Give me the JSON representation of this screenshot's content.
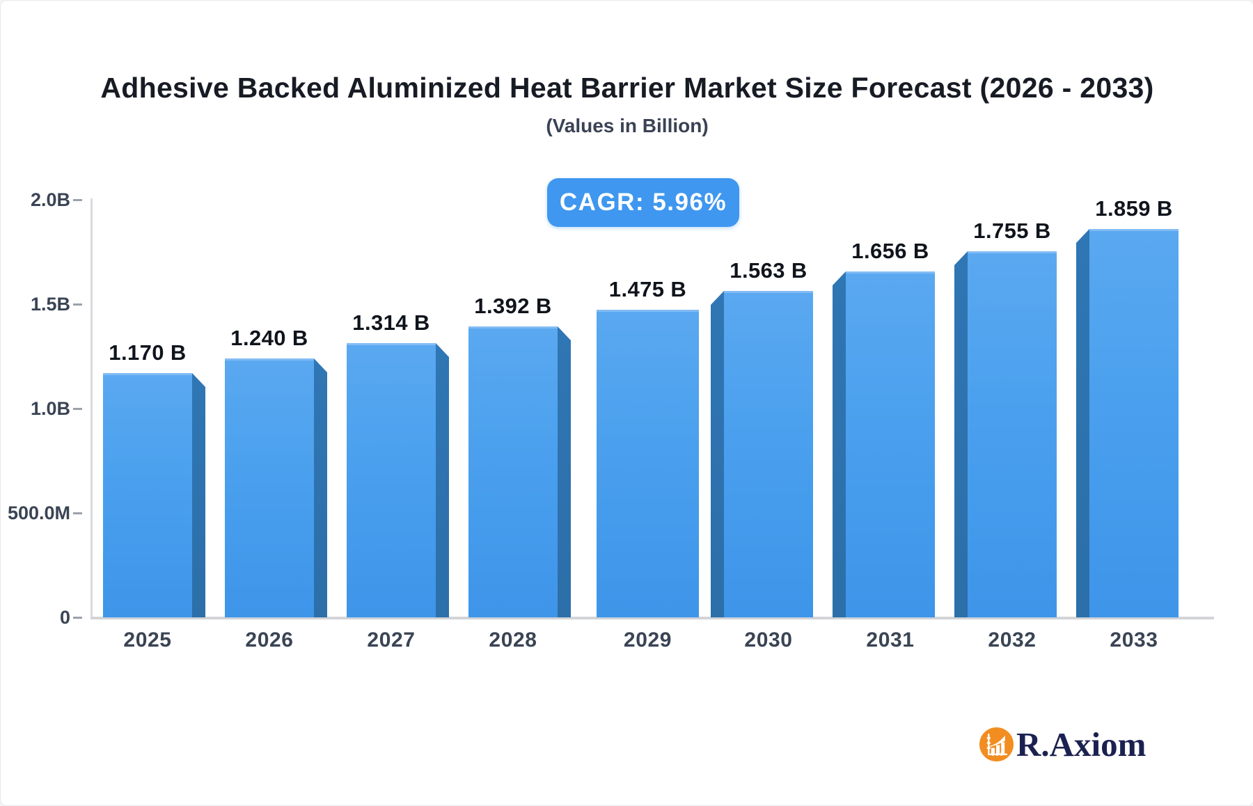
{
  "header": {
    "title": "Adhesive Backed Aluminized Heat Barrier Market Size Forecast (2026 - 2033)",
    "subtitle": "(Values in Billion)"
  },
  "cagr_badge": {
    "label": "CAGR: 5.96%",
    "bg_color": "#3f97ef",
    "text_color": "#ffffff"
  },
  "brand": {
    "name": "R.Axiom",
    "icon": "bar-chart-growth-icon",
    "icon_bg_color": "#f28d21",
    "text_color": "#1b2150"
  },
  "chart_data": {
    "type": "bar",
    "title": "Adhesive Backed Aluminized Heat Barrier Market Size Forecast (2026 - 2033)",
    "subtitle": "(Values in Billion)",
    "categories": [
      "2025",
      "2026",
      "2027",
      "2028",
      "2029",
      "2030",
      "2031",
      "2032",
      "2033"
    ],
    "values": [
      1.17,
      1.24,
      1.314,
      1.392,
      1.475,
      1.563,
      1.656,
      1.755,
      1.859
    ],
    "value_labels": [
      "1.170 B",
      "1.240 B",
      "1.314 B",
      "1.392 B",
      "1.475 B",
      "1.563 B",
      "1.656 B",
      "1.755 B",
      "1.859 B"
    ],
    "xlabel": "",
    "ylabel": "",
    "ylim": [
      0,
      2.0
    ],
    "y_ticks": [
      {
        "value": 0.0,
        "label": "0"
      },
      {
        "value": 0.5,
        "label": "500.0M"
      },
      {
        "value": 1.0,
        "label": "1.0B"
      },
      {
        "value": 1.5,
        "label": "1.5B"
      },
      {
        "value": 2.0,
        "label": "2.0B"
      }
    ],
    "grid": false,
    "legend": false,
    "style": "3d-column",
    "colors": {
      "bar_face_top": "#5aa8f0",
      "bar_face_bottom": "#3e95e9",
      "bar_side": "#2e74b0",
      "axis_line": "#d9dbdf",
      "tick_label": "#3a4454",
      "value_label": "#0f141c"
    }
  }
}
